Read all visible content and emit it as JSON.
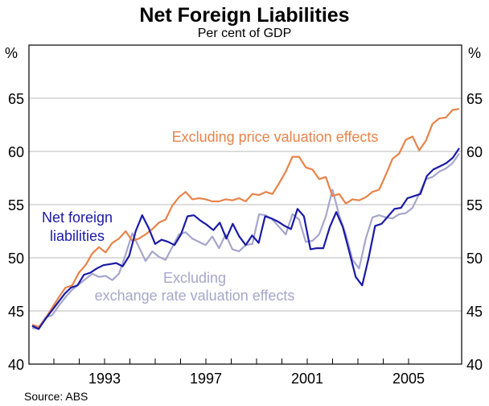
{
  "chart_data": {
    "type": "line",
    "title": "Net Foreign Liabilities",
    "subtitle": "Per cent of GDP",
    "xlabel": "",
    "ylabel_left": "%",
    "ylabel_right": "%",
    "ylim": [
      40,
      68
    ],
    "yticks": [
      40,
      45,
      50,
      55,
      60,
      65
    ],
    "xlim": [
      1990.0,
      2006.0
    ],
    "xtick_labels": [
      "1993",
      "1997",
      "2001",
      "2005"
    ],
    "xtick_values": [
      1993,
      1997,
      2001,
      2005
    ],
    "minor_xticks_every_year": true,
    "grid": true,
    "source": "Source: ABS",
    "x_start": 1990.0,
    "x_step": 0.25,
    "series": [
      {
        "name": "Net foreign liabilities",
        "label_lines": [
          "Net foreign",
          "liabilities"
        ],
        "color": "#1a1aa6",
        "values": [
          43.6,
          43.3,
          44.2,
          45.0,
          45.8,
          46.6,
          47.2,
          47.4,
          48.4,
          48.6,
          49.0,
          49.3,
          49.4,
          49.5,
          49.2,
          50.2,
          52.5,
          54.0,
          52.8,
          51.3,
          51.7,
          51.5,
          51.2,
          52.2,
          53.9,
          54.0,
          53.5,
          53.1,
          52.6,
          53.3,
          51.8,
          53.2,
          52.0,
          51.2,
          52.1,
          51.4,
          53.9,
          53.7,
          53.4,
          53.0,
          52.7,
          54.6,
          53.9,
          50.8,
          50.9,
          50.9,
          52.9,
          54.3,
          52.9,
          50.6,
          48.2,
          47.4,
          50.0,
          53.0,
          53.2,
          53.9,
          54.6,
          54.7,
          55.6,
          55.8,
          56.0,
          57.7,
          58.3,
          58.6,
          58.9,
          59.4,
          60.3
        ],
        "label_color": "#1a1aa6"
      },
      {
        "name": "Excluding price valuation effects",
        "label_lines": [
          "Excluding price valuation effects"
        ],
        "color": "#e8834a",
        "values": [
          43.7,
          43.5,
          44.3,
          45.3,
          46.3,
          47.2,
          47.4,
          48.6,
          49.3,
          50.4,
          51.0,
          50.5,
          51.4,
          51.8,
          52.5,
          51.6,
          51.8,
          52.2,
          52.7,
          53.3,
          53.6,
          54.9,
          55.7,
          56.2,
          55.5,
          55.6,
          55.5,
          55.3,
          55.3,
          55.5,
          55.4,
          55.6,
          55.3,
          56.0,
          55.9,
          56.2,
          56.0,
          57.0,
          58.1,
          59.5,
          59.5,
          58.5,
          58.3,
          57.4,
          57.6,
          55.8,
          56.0,
          55.1,
          55.5,
          55.4,
          55.7,
          56.2,
          56.4,
          57.8,
          59.3,
          59.8,
          61.1,
          61.4,
          60.1,
          61.0,
          62.6,
          63.1,
          63.2,
          63.9,
          64.0
        ],
        "label_color": "#e8834a"
      },
      {
        "name": "Excluding exchange rate valuation effects",
        "label_lines": [
          "Excluding",
          "exchange rate valuation effects"
        ],
        "color": "#a6a6cc",
        "values": [
          43.4,
          43.3,
          44.4,
          44.6,
          45.5,
          46.3,
          47.0,
          47.5,
          48.0,
          48.5,
          48.2,
          48.3,
          47.9,
          48.5,
          50.3,
          52.3,
          51.0,
          49.7,
          50.6,
          50.1,
          49.8,
          51.0,
          52.2,
          52.4,
          51.8,
          51.5,
          51.2,
          52.0,
          50.9,
          52.2,
          50.8,
          50.6,
          51.2,
          51.3,
          54.1,
          54.0,
          53.6,
          52.9,
          52.2,
          54.1,
          53.6,
          51.5,
          51.6,
          52.2,
          53.9,
          56.4,
          54.0,
          52.2,
          49.8,
          49.0,
          51.8,
          53.8,
          54.0,
          53.8,
          53.7,
          54.1,
          54.2,
          54.7,
          56.0,
          57.4,
          57.6,
          58.1,
          58.4,
          58.9,
          59.8
        ],
        "label_color": "#a6a6cc"
      }
    ]
  }
}
